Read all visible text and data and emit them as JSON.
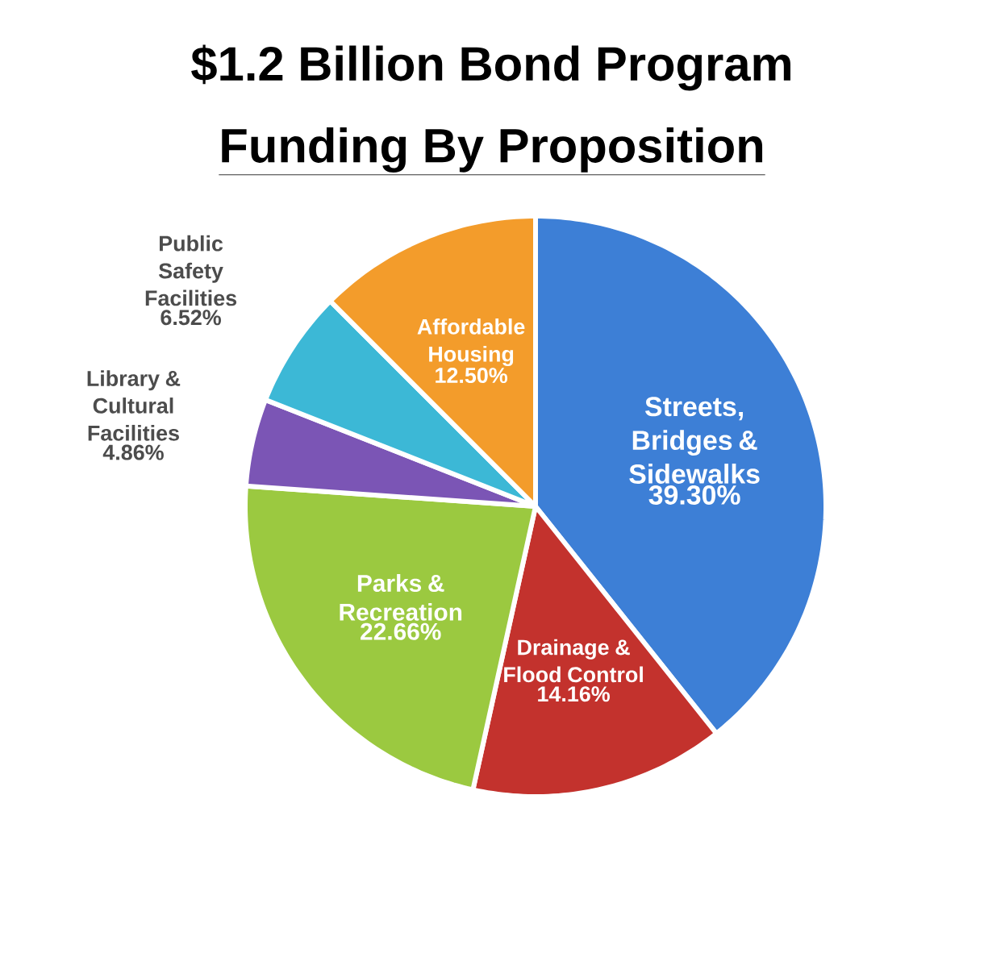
{
  "chart_data": {
    "type": "pie",
    "title": "$1.2 Billion Bond Program",
    "subtitle": "Funding By Proposition",
    "categories": [
      "Streets, Bridges & Sidewalks",
      "Drainage & Flood Control",
      "Parks & Recreation",
      "Library & Cultural Facilities",
      "Public Safety Facilities",
      "Affordable Housing"
    ],
    "values": [
      39.3,
      14.16,
      22.66,
      4.86,
      6.52,
      12.5
    ],
    "value_labels": [
      "39.30%",
      "14.16%",
      "22.66%",
      "4.86%",
      "6.52%",
      "12.50%"
    ],
    "colors": [
      "#3d7fd6",
      "#c3322d",
      "#9bc940",
      "#7b55b5",
      "#3cb8d6",
      "#f39c2b"
    ]
  }
}
